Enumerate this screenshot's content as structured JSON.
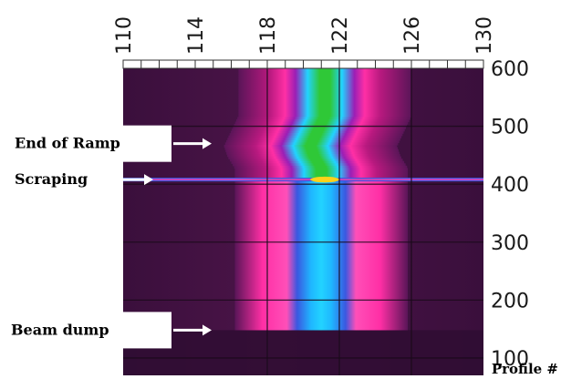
{
  "chart_data": {
    "type": "heatmap",
    "title": "",
    "x_ticks": [
      "110",
      "114",
      "118",
      "122",
      "126",
      "130"
    ],
    "x_range": [
      110,
      130
    ],
    "y_ticks": [
      "600",
      "500",
      "400",
      "300",
      "200",
      "100"
    ],
    "y_range": [
      70,
      600
    ],
    "y_axis_label": "Profile #",
    "grid": true,
    "colormap": [
      "#3a0f3c",
      "#6b1a6a",
      "#b8197f",
      "#ff2fa5",
      "#2aa8e6",
      "#22d3ff",
      "#1aa85a",
      "#2fc837",
      "#ffd21a"
    ],
    "profile_centers": [
      {
        "profile": 600,
        "center": 121.2
      },
      {
        "profile": 520,
        "center": 121.2
      },
      {
        "profile": 468,
        "center": 120.4
      },
      {
        "profile": 450,
        "center": 120.6
      },
      {
        "profile": 430,
        "center": 121.0
      },
      {
        "profile": 150,
        "center": 121.0
      }
    ],
    "events": [
      {
        "label": "End of Ramp",
        "profile": 470
      },
      {
        "label": "Scraping",
        "profile": 408
      },
      {
        "label": "Beam dump",
        "profile": 148
      }
    ]
  }
}
